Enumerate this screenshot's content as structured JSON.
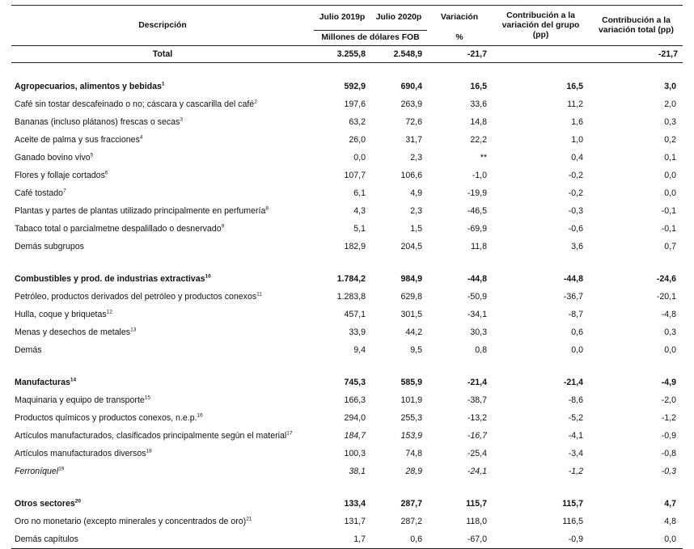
{
  "header": {
    "descripcion": "Descripción",
    "jul2019": "Julio 2019p",
    "jul2020": "Julio 2020p",
    "variacion": "Variación",
    "contrib_grupo": "Contribución a la variación del grupo (pp)",
    "contrib_total": "Contribución a la variación total (pp)",
    "unidad": "Millones de dólares FOB",
    "pct": "%"
  },
  "total": {
    "label": "Total",
    "v2019": "3.255,8",
    "v2020": "2.548,9",
    "var": "-21,7",
    "cg": "",
    "ct": "-21,7"
  },
  "groups": [
    {
      "label": "Agropecuarios, alimentos y bebidas",
      "note": "1",
      "v2019": "592,9",
      "v2020": "690,4",
      "var": "16,5",
      "cg": "16,5",
      "ct": "3,0",
      "items": [
        {
          "label": "Café sin tostar descafeinado o no; cáscara y cascarilla del café",
          "note": "2",
          "v2019": "197,6",
          "v2020": "263,9",
          "var": "33,6",
          "cg": "11,2",
          "ct": "2,0"
        },
        {
          "label": "Bananas (incluso plátanos) frescas o secas",
          "note": "3",
          "v2019": "63,2",
          "v2020": "72,6",
          "var": "14,8",
          "cg": "1,6",
          "ct": "0,3"
        },
        {
          "label": "Aceite de palma y sus fracciones",
          "note": "4",
          "v2019": "26,0",
          "v2020": "31,7",
          "var": "22,2",
          "cg": "1,0",
          "ct": "0,2"
        },
        {
          "label": "Ganado bovino vivo",
          "note": "5",
          "v2019": "0,0",
          "v2020": "2,3",
          "var": "**",
          "cg": "0,4",
          "ct": "0,1"
        },
        {
          "label": "Flores y follaje cortados",
          "note": "6",
          "v2019": "107,7",
          "v2020": "106,6",
          "var": "-1,0",
          "cg": "-0,2",
          "ct": "0,0"
        },
        {
          "label": "Café tostado",
          "note": "7",
          "v2019": "6,1",
          "v2020": "4,9",
          "var": "-19,9",
          "cg": "-0,2",
          "ct": "0,0"
        },
        {
          "label": "Plantas y partes de plantas utilizado principalmente en perfumería",
          "note": "8",
          "v2019": "4,3",
          "v2020": "2,3",
          "var": "-46,5",
          "cg": "-0,3",
          "ct": "-0,1"
        },
        {
          "label": "Tabaco total o parcialmetne despalillado o desnervado",
          "note": "9",
          "v2019": "5,1",
          "v2020": "1,5",
          "var": "-69,9",
          "cg": "-0,6",
          "ct": "-0,1"
        },
        {
          "label": "Demás subgrupos",
          "note": "",
          "v2019": "182,9",
          "v2020": "204,5",
          "var": "11,8",
          "cg": "3,6",
          "ct": "0,7"
        }
      ]
    },
    {
      "label": "Combustibles y prod. de industrias extractivas",
      "note": "10",
      "v2019": "1.784,2",
      "v2020": "984,9",
      "var": "-44,8",
      "cg": "-44,8",
      "ct": "-24,6",
      "items": [
        {
          "label": "Petróleo, productos derivados del petróleo y productos conexos",
          "note": "11",
          "v2019": "1.283,8",
          "v2020": "629,8",
          "var": "-50,9",
          "cg": "-36,7",
          "ct": "-20,1"
        },
        {
          "label": "Hulla, coque y briquetas",
          "note": "12",
          "v2019": "457,1",
          "v2020": "301,5",
          "var": "-34,1",
          "cg": "-8,7",
          "ct": "-4,8"
        },
        {
          "label": "Menas y desechos de metales",
          "note": "13",
          "v2019": "33,9",
          "v2020": "44,2",
          "var": "30,3",
          "cg": "0,6",
          "ct": "0,3"
        },
        {
          "label": "Demás",
          "note": "",
          "v2019": "9,4",
          "v2020": "9,5",
          "var": "0,8",
          "cg": "0,0",
          "ct": "0,0"
        }
      ]
    },
    {
      "label": "Manufacturas",
      "note": "14",
      "v2019": "745,3",
      "v2020": "585,9",
      "var": "-21,4",
      "cg": "-21,4",
      "ct": "-4,9",
      "items": [
        {
          "label": "Maquinaria y equipo de transporte",
          "note": "15",
          "v2019": "166,3",
          "v2020": "101,9",
          "var": "-38,7",
          "cg": "-8,6",
          "ct": "-2,0"
        },
        {
          "label": "Productos químicos y productos conexos, n.e.p.",
          "note": "16",
          "v2019": "294,0",
          "v2020": "255,3",
          "var": "-13,2",
          "cg": "-5,2",
          "ct": "-1,2"
        },
        {
          "label": "Artículos manufacturados, clasificados principalmente según el material",
          "note": "17",
          "v2019": "184,7",
          "v2020": "153,9",
          "var": "-16,7",
          "cg": "-4,1",
          "ct": "-0,9",
          "italic_nums": true
        },
        {
          "label": "Artículos manufacturados diversos",
          "note": "18",
          "v2019": "100,3",
          "v2020": "74,8",
          "var": "-25,4",
          "cg": "-3,4",
          "ct": "-0,8"
        },
        {
          "label": "Ferroníquel",
          "note": "19",
          "v2019": "38,1",
          "v2020": "28,9",
          "var": "-24,1",
          "cg": "-1,2",
          "ct": "-0,3",
          "italic": true
        }
      ]
    },
    {
      "label": "Otros sectores",
      "note": "20",
      "v2019": "133,4",
      "v2020": "287,7",
      "var": "115,7",
      "cg": "115,7",
      "ct": "4,7",
      "items": [
        {
          "label": "Oro no monetario (excepto minerales y concentrados de oro)",
          "note": "21",
          "v2019": "131,7",
          "v2020": "287,2",
          "var": "118,0",
          "cg": "116,5",
          "ct": "4,8"
        },
        {
          "label": "Demás capítulos",
          "note": "",
          "v2019": "1,7",
          "v2020": "0,6",
          "var": "-67,0",
          "cg": "-0,9",
          "ct": "0,0"
        }
      ]
    }
  ]
}
